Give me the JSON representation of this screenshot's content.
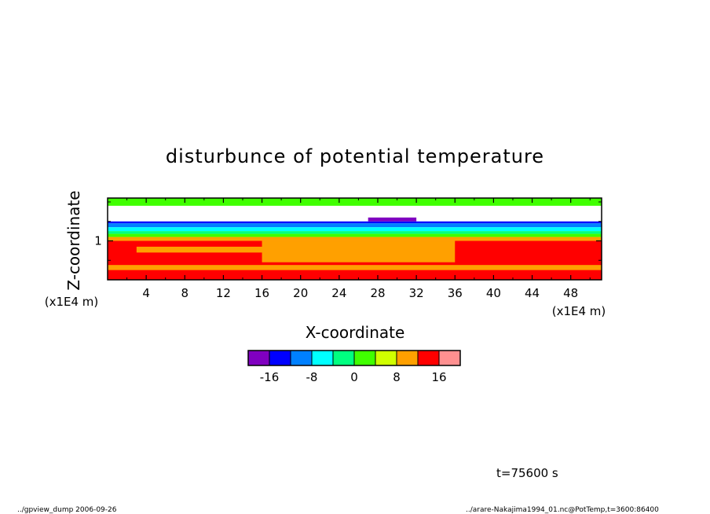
{
  "chart_data": {
    "type": "heatmap",
    "title": "disturbunce of potential temperature",
    "xlabel": "X-coordinate",
    "ylabel": "Z-coordinate",
    "x_unit": "(x1E4 m)",
    "y_unit": "(x1E4 m)",
    "xlim": [
      0,
      51.2
    ],
    "ylim": [
      0,
      2.1
    ],
    "x_ticks": [
      4,
      8,
      12,
      16,
      20,
      24,
      28,
      32,
      36,
      40,
      44,
      48
    ],
    "x_tick_labels": [
      "4",
      "8",
      "12",
      "16",
      "20",
      "24",
      "28",
      "32",
      "36",
      "40",
      "44",
      "48"
    ],
    "y_ticks": [
      1
    ],
    "y_tick_labels": [
      "1"
    ],
    "colorbar": {
      "colors": [
        "#8000c0",
        "#0000ff",
        "#0080ff",
        "#00ffff",
        "#00ff80",
        "#40ff00",
        "#d0ff00",
        "#ffa000",
        "#ff0000",
        "#ff9090"
      ],
      "levels": [
        -20,
        -16,
        -12,
        -8,
        -4,
        0,
        4,
        8,
        12,
        16,
        20
      ],
      "tick_labels": [
        "-16",
        "-8",
        "0",
        "8",
        "16"
      ]
    },
    "bands": [
      {
        "z": [
          1.9,
          2.1
        ],
        "color": "#40ff00"
      },
      {
        "z": [
          1.5,
          1.9
        ],
        "color": "#ffffff"
      },
      {
        "z": [
          1.45,
          1.5
        ],
        "color": "#0000ff"
      },
      {
        "z": [
          1.35,
          1.45
        ],
        "color": "#0080ff"
      },
      {
        "z": [
          1.25,
          1.35
        ],
        "color": "#00ffff"
      },
      {
        "z": [
          1.18,
          1.25
        ],
        "color": "#00ff80"
      },
      {
        "z": [
          1.1,
          1.18
        ],
        "color": "#40ff00"
      },
      {
        "z": [
          1.0,
          1.1
        ],
        "color": "#ffa000"
      },
      {
        "z": [
          0.0,
          1.0
        ],
        "color": "#ff0000"
      }
    ],
    "patches": [
      {
        "x": [
          16,
          36
        ],
        "z": [
          0.45,
          1.0
        ],
        "color": "#ffa000"
      },
      {
        "x": [
          3,
          17
        ],
        "z": [
          0.7,
          0.85
        ],
        "color": "#ffa000"
      },
      {
        "x": [
          0,
          51.2
        ],
        "z": [
          0.25,
          0.38
        ],
        "color": "#ffa000"
      },
      {
        "x": [
          27,
          32
        ],
        "z": [
          1.5,
          1.6
        ],
        "color": "#8000c0"
      }
    ]
  },
  "annotations": {
    "time": "t=75600 s",
    "footer_left": "../gpview_dump  2006-09-26",
    "footer_right": "../arare-Nakajima1994_01.nc@PotTemp,t=3600:86400"
  }
}
